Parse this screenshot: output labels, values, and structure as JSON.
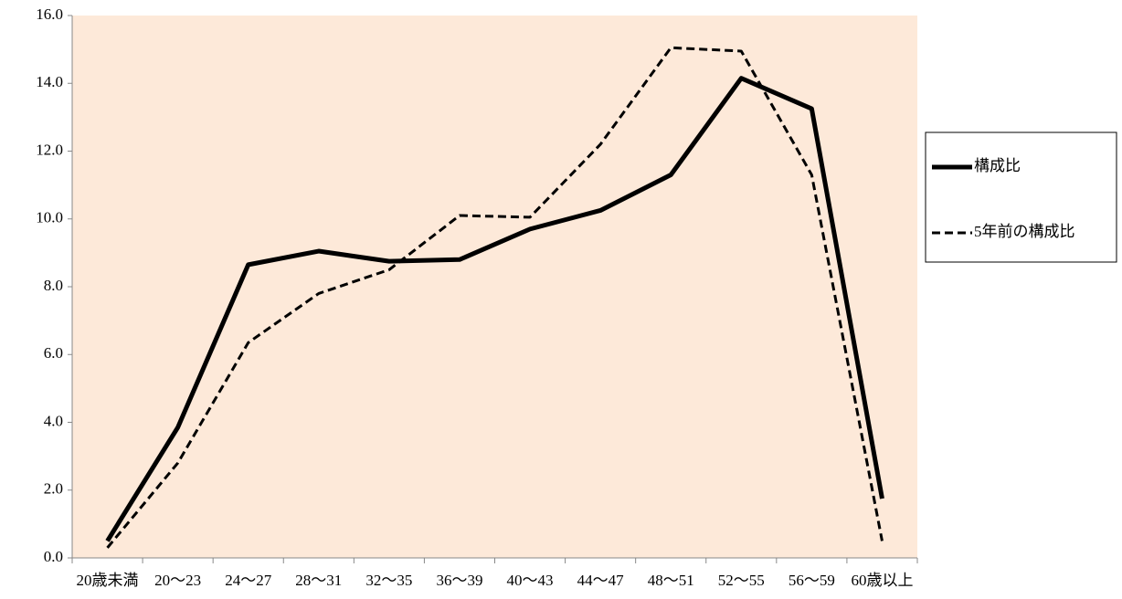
{
  "chart_data": {
    "type": "line",
    "categories": [
      "20歳未満",
      "20～23",
      "24～27",
      "28～31",
      "32～35",
      "36～39",
      "40～43",
      "44～47",
      "48～51",
      "52～55",
      "56～59",
      "60歳以上"
    ],
    "series": [
      {
        "name": "構成比",
        "color": "#000000",
        "style": "solid",
        "values": [
          0.5,
          3.85,
          8.65,
          9.05,
          8.75,
          8.8,
          9.7,
          10.25,
          11.3,
          14.15,
          13.25,
          1.75
        ]
      },
      {
        "name": "5年前の構成比",
        "color": "#000000",
        "style": "dashed",
        "values": [
          0.3,
          2.8,
          6.35,
          7.8,
          8.5,
          10.1,
          10.05,
          12.2,
          15.05,
          14.95,
          11.3,
          0.5
        ]
      }
    ],
    "ylim": [
      0,
      16
    ],
    "yticks": [
      {
        "value": 0,
        "label": "0.0"
      },
      {
        "value": 2,
        "label": "2.0"
      },
      {
        "value": 4,
        "label": "4.0"
      },
      {
        "value": 6,
        "label": "6.0"
      },
      {
        "value": 8,
        "label": "8.0"
      },
      {
        "value": 10,
        "label": "10.0"
      },
      {
        "value": 12,
        "label": "12.0"
      },
      {
        "value": 14,
        "label": "14.0"
      },
      {
        "value": 16,
        "label": "16.0"
      }
    ],
    "plot_background": "#fde9d9",
    "legend": "right"
  }
}
